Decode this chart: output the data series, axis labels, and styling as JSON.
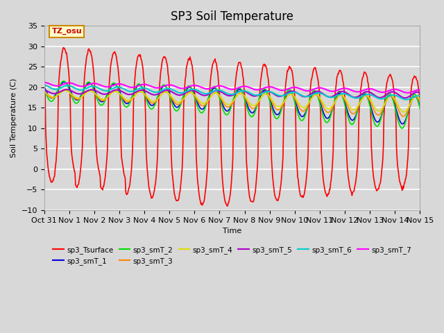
{
  "title": "SP3 Soil Temperature",
  "xlabel": "Time",
  "ylabel": "Soil Temperature (C)",
  "ylim": [
    -10,
    35
  ],
  "xtick_labels": [
    "Oct 31",
    "Nov 1",
    "Nov 2",
    "Nov 3",
    "Nov 4",
    "Nov 5",
    "Nov 6",
    "Nov 7",
    "Nov 8",
    "Nov 9",
    "Nov 10",
    "Nov 11",
    "Nov 12",
    "Nov 13",
    "Nov 14",
    "Nov 15"
  ],
  "annotation_text": "TZ_osu",
  "annotation_color": "#cc0000",
  "annotation_bg": "#ffffcc",
  "annotation_border": "#cc8800",
  "series_colors": {
    "sp3_Tsurface": "#ff0000",
    "sp3_smT_1": "#0000dd",
    "sp3_smT_2": "#00dd00",
    "sp3_smT_3": "#ff8800",
    "sp3_smT_4": "#dddd00",
    "sp3_smT_5": "#aa00cc",
    "sp3_smT_6": "#00cccc",
    "sp3_smT_7": "#ff00ff"
  },
  "legend_order": [
    "sp3_Tsurface",
    "sp3_smT_1",
    "sp3_smT_2",
    "sp3_smT_3",
    "sp3_smT_4",
    "sp3_smT_5",
    "sp3_smT_6",
    "sp3_smT_7"
  ],
  "fig_bg": "#d8d8d8",
  "plot_bg": "#d8d8d8",
  "grid_color": "#ffffff",
  "title_fontsize": 12,
  "yticks": [
    -10,
    -5,
    0,
    5,
    10,
    15,
    20,
    25,
    30,
    35
  ]
}
